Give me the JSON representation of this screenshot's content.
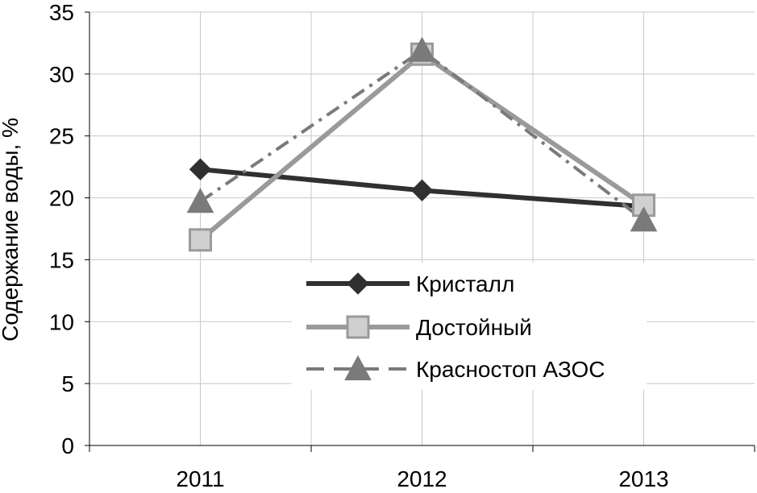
{
  "chart_data": {
    "type": "line",
    "title": "",
    "xlabel": "",
    "ylabel": "Содержание воды, %",
    "categories": [
      "2011",
      "2012",
      "2013"
    ],
    "ylim": [
      0,
      35
    ],
    "yticks": [
      "0",
      "5",
      "10",
      "15",
      "20",
      "25",
      "30",
      "35"
    ],
    "grid": true,
    "legend_position": "center-right",
    "series": [
      {
        "name": "Кристалл",
        "values": [
          22.3,
          20.6,
          19.3
        ],
        "color": "#303030",
        "marker": "diamond",
        "dash": "solid"
      },
      {
        "name": "Достойный",
        "values": [
          16.6,
          31.6,
          19.4
        ],
        "color": "#9a9a9a",
        "marker": "square",
        "dash": "solid"
      },
      {
        "name": "Красностоп АЗОС",
        "values": [
          19.7,
          31.9,
          18.2
        ],
        "color": "#7a7a7a",
        "marker": "triangle",
        "dash": "dashed"
      }
    ]
  }
}
